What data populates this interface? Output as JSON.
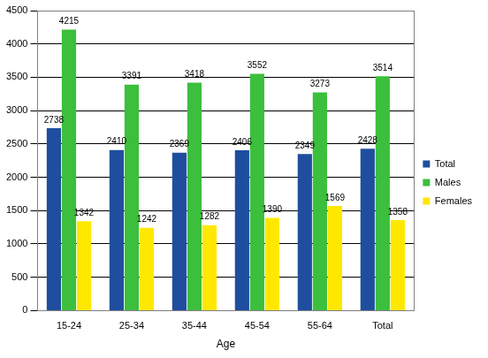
{
  "chart_data": {
    "type": "bar",
    "x_label": "Age",
    "categories": [
      "15-24",
      "25-34",
      "35-44",
      "45-54",
      "55-64",
      "Total"
    ],
    "series": [
      {
        "name": "Total",
        "color": "#1f4e9e",
        "values": [
          2738,
          2410,
          2369,
          2406,
          2349,
          2428
        ]
      },
      {
        "name": "Males",
        "color": "#3cbf3c",
        "values": [
          4215,
          3391,
          3418,
          3552,
          3273,
          3514
        ]
      },
      {
        "name": "Females",
        "color": "#ffe800",
        "values": [
          1342,
          1242,
          1282,
          1390,
          1569,
          1358
        ]
      }
    ],
    "ylim": [
      0,
      4500
    ],
    "yticks": [
      0,
      500,
      1000,
      1500,
      2000,
      2500,
      3000,
      3500,
      4000,
      4500
    ],
    "grid": true,
    "legend": "right",
    "data_labels": true
  }
}
